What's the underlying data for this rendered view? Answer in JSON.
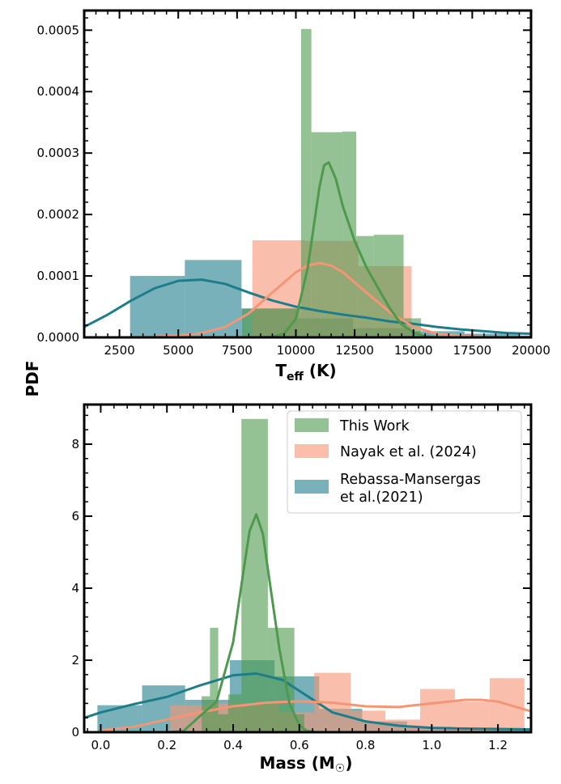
{
  "figure": {
    "shared_ylabel": "PDF"
  },
  "chart_data": [
    {
      "type": "histogram",
      "xlabel": "T",
      "xlabel_sub": "eff",
      "xlabel_unit": " (K)",
      "xlim": [
        1000,
        20000
      ],
      "ylim": [
        0,
        0.000532
      ],
      "xticks": [
        2500,
        5000,
        7500,
        10000,
        12500,
        15000,
        17500,
        20000
      ],
      "xtick_labels": [
        "2500",
        "5000",
        "7500",
        "10000",
        "12500",
        "15000",
        "17500",
        "20000"
      ],
      "yticks": [
        0,
        0.0001,
        0.0002,
        0.0003,
        0.0004,
        0.0005
      ],
      "ytick_labels": [
        "0.0000",
        "0.0001",
        "0.0002",
        "0.0003",
        "0.0004",
        "0.0005"
      ],
      "series": [
        {
          "color": "#1e7d8a",
          "bins": [
            [
              2950,
              5280,
              0.0001
            ],
            [
              5280,
              7690,
              0.000126
            ],
            [
              7690,
              10020,
              4.7e-05
            ],
            [
              10020,
              12430,
              3.1e-05
            ],
            [
              12430,
              14760,
              1.5e-05
            ],
            [
              14760,
              17170,
              1e-05
            ],
            [
              17170,
              19500,
              6e-06
            ],
            [
              19500,
              20000,
              3e-06
            ]
          ],
          "kde": [
            [
              1000,
              1.7e-05
            ],
            [
              2000,
              3.7e-05
            ],
            [
              3000,
              6e-05
            ],
            [
              4000,
              8e-05
            ],
            [
              5000,
              9.2e-05
            ],
            [
              6000,
              9.4e-05
            ],
            [
              7000,
              8.7e-05
            ],
            [
              8000,
              7.3e-05
            ],
            [
              9000,
              6e-05
            ],
            [
              10000,
              5e-05
            ],
            [
              11000,
              4.3e-05
            ],
            [
              12000,
              3.7e-05
            ],
            [
              13000,
              3.2e-05
            ],
            [
              14000,
              2.6e-05
            ],
            [
              15000,
              2.2e-05
            ],
            [
              16000,
              1.7e-05
            ],
            [
              17000,
              1.3e-05
            ],
            [
              18000,
              1e-05
            ],
            [
              19000,
              7e-06
            ],
            [
              20000,
              6e-06
            ]
          ]
        },
        {
          "color": "#f59575",
          "bins": [
            [
              8150,
              10380,
              0.000158
            ],
            [
              10380,
              12660,
              0.000157
            ],
            [
              12660,
              14920,
              0.000116
            ]
          ],
          "kde": [
            [
              4000,
              1e-06
            ],
            [
              5000,
              3e-06
            ],
            [
              6000,
              7e-06
            ],
            [
              7000,
              1.7e-05
            ],
            [
              8000,
              3.9e-05
            ],
            [
              9000,
              7.3e-05
            ],
            [
              10000,
              0.000106
            ],
            [
              10500,
              0.000117
            ],
            [
              11000,
              0.000121
            ],
            [
              11500,
              0.000117
            ],
            [
              12000,
              0.000106
            ],
            [
              13000,
              7.3e-05
            ],
            [
              14000,
              4.1e-05
            ],
            [
              15000,
              1.7e-05
            ],
            [
              16000,
              6e-06
            ],
            [
              17000,
              2e-06
            ],
            [
              18000,
              1e-06
            ]
          ]
        },
        {
          "color": "#4e994e",
          "bins": [
            [
              7710,
              10220,
              4.7e-05
            ],
            [
              10220,
              10660,
              0.000502
            ],
            [
              10660,
              11960,
              0.000334
            ],
            [
              11960,
              12570,
              0.000335
            ],
            [
              12570,
              13310,
              0.000165
            ],
            [
              13310,
              14580,
              0.000167
            ],
            [
              14580,
              15320,
              3.1e-05
            ]
          ],
          "kde": [
            [
              8500,
              0.0
            ],
            [
              9000,
              1e-06
            ],
            [
              9500,
              6e-06
            ],
            [
              10000,
              3e-05
            ],
            [
              10500,
              0.000112
            ],
            [
              11000,
              0.000244
            ],
            [
              11200,
              0.00028
            ],
            [
              11400,
              0.000285
            ],
            [
              11700,
              0.000258
            ],
            [
              12000,
              0.000213
            ],
            [
              12500,
              0.000157
            ],
            [
              13000,
              0.000114
            ],
            [
              13500,
              8e-05
            ],
            [
              14000,
              4.7e-05
            ],
            [
              14500,
              2.1e-05
            ],
            [
              15000,
              8e-06
            ],
            [
              15500,
              2e-06
            ],
            [
              16000,
              0.0
            ]
          ]
        }
      ]
    },
    {
      "type": "histogram",
      "xlabel": "Mass (M",
      "xlabel_symbol": "☉",
      "xlabel_close": ")",
      "xlim": [
        -0.05,
        1.3
      ],
      "ylim": [
        0,
        9.1
      ],
      "xticks": [
        0.0,
        0.2,
        0.4,
        0.6,
        0.8,
        1.0,
        1.2
      ],
      "xtick_labels": [
        "0.0",
        "0.2",
        "0.4",
        "0.6",
        "0.8",
        "1.0",
        "1.2"
      ],
      "yticks": [
        0,
        2,
        4,
        6,
        8
      ],
      "ytick_labels": [
        "0",
        "2",
        "4",
        "6",
        "8"
      ],
      "legend": {
        "position": "upper right",
        "entries": [
          {
            "label": "This Work",
            "lines": [
              "This Work"
            ],
            "color": "#4e994e"
          },
          {
            "label": "Nayak et al. (2024)",
            "lines": [
              "Nayak et al. (2024)"
            ],
            "color": "#f59575"
          },
          {
            "label": "Rebassa-Mansergas et al.(2021)",
            "lines": [
              "Rebassa-Mansergas",
              " et al.(2021)"
            ],
            "color": "#1e7d8a"
          }
        ]
      },
      "series": [
        {
          "name": "Rebassa-Mansergas et al.(2021)",
          "color": "#1e7d8a",
          "bins": [
            [
              -0.01,
              0.125,
              0.75
            ],
            [
              0.125,
              0.255,
              1.3
            ],
            [
              0.255,
              0.39,
              0.9
            ],
            [
              0.39,
              0.525,
              2.0
            ],
            [
              0.525,
              0.66,
              1.55
            ],
            [
              0.66,
              0.79,
              0.65
            ],
            [
              0.79,
              0.925,
              0.3
            ],
            [
              0.925,
              1.06,
              0.15
            ],
            [
              1.06,
              1.19,
              0.1
            ],
            [
              1.19,
              1.3,
              0.08
            ]
          ],
          "kde": [
            [
              -0.05,
              0.4
            ],
            [
              0.0,
              0.55
            ],
            [
              0.1,
              0.78
            ],
            [
              0.2,
              0.98
            ],
            [
              0.3,
              1.3
            ],
            [
              0.4,
              1.58
            ],
            [
              0.47,
              1.63
            ],
            [
              0.55,
              1.45
            ],
            [
              0.6,
              1.15
            ],
            [
              0.7,
              0.55
            ],
            [
              0.8,
              0.3
            ],
            [
              0.9,
              0.18
            ],
            [
              1.0,
              0.12
            ],
            [
              1.1,
              0.1
            ],
            [
              1.2,
              0.09
            ],
            [
              1.3,
              0.08
            ]
          ]
        },
        {
          "name": "Nayak et al. (2024)",
          "color": "#f59575",
          "bins": [
            [
              0.21,
              0.32,
              0.75
            ],
            [
              0.32,
              0.43,
              0.8
            ],
            [
              0.43,
              0.54,
              0.8
            ],
            [
              0.54,
              0.645,
              0.55
            ],
            [
              0.645,
              0.755,
              1.65
            ],
            [
              0.755,
              0.86,
              0.6
            ],
            [
              0.86,
              0.965,
              0.35
            ],
            [
              0.965,
              1.07,
              1.2
            ],
            [
              1.07,
              1.175,
              0.85
            ],
            [
              1.175,
              1.28,
              1.5
            ]
          ],
          "kde": [
            [
              0.0,
              0.05
            ],
            [
              0.1,
              0.15
            ],
            [
              0.2,
              0.35
            ],
            [
              0.3,
              0.55
            ],
            [
              0.4,
              0.72
            ],
            [
              0.5,
              0.82
            ],
            [
              0.6,
              0.86
            ],
            [
              0.7,
              0.82
            ],
            [
              0.8,
              0.72
            ],
            [
              0.9,
              0.7
            ],
            [
              1.0,
              0.8
            ],
            [
              1.1,
              0.9
            ],
            [
              1.15,
              0.9
            ],
            [
              1.2,
              0.85
            ],
            [
              1.3,
              0.58
            ]
          ]
        },
        {
          "name": "This Work",
          "color": "#4e994e",
          "bins": [
            [
              0.305,
              0.33,
              1.0
            ],
            [
              0.33,
              0.355,
              2.9
            ],
            [
              0.355,
              0.385,
              0.5
            ],
            [
              0.385,
              0.425,
              1.05
            ],
            [
              0.425,
              0.505,
              8.7
            ],
            [
              0.505,
              0.585,
              2.9
            ],
            [
              0.585,
              0.615,
              0.5
            ]
          ],
          "kde": [
            [
              0.2,
              0.0
            ],
            [
              0.25,
              0.03
            ],
            [
              0.3,
              0.45
            ],
            [
              0.35,
              0.85
            ],
            [
              0.4,
              2.5
            ],
            [
              0.43,
              4.4
            ],
            [
              0.45,
              5.6
            ],
            [
              0.47,
              6.05
            ],
            [
              0.49,
              5.5
            ],
            [
              0.51,
              4.2
            ],
            [
              0.54,
              2.3
            ],
            [
              0.57,
              0.8
            ],
            [
              0.6,
              0.2
            ],
            [
              0.62,
              0.05
            ],
            [
              0.65,
              0.0
            ]
          ]
        }
      ]
    }
  ]
}
